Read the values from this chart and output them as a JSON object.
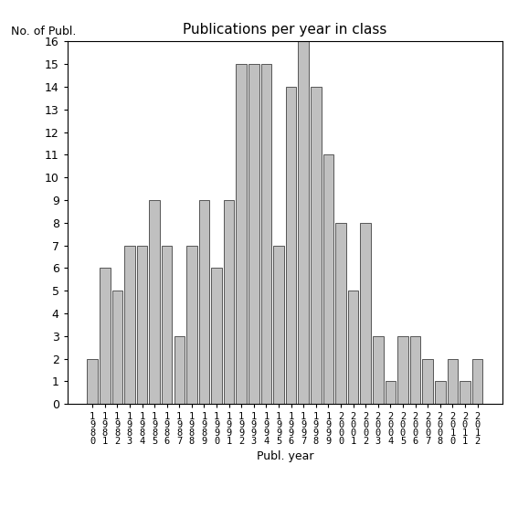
{
  "title": "Publications per year in class",
  "xlabel": "Publ. year",
  "ylabel": "No. of Publ.",
  "bar_color": "#c0c0c0",
  "bar_edgecolor": "#404040",
  "background_color": "#ffffff",
  "ylim": [
    0,
    16
  ],
  "yticks": [
    0,
    1,
    2,
    3,
    4,
    5,
    6,
    7,
    8,
    9,
    10,
    11,
    12,
    13,
    14,
    15,
    16
  ],
  "categories": [
    "1980",
    "1981",
    "1982",
    "1983",
    "1984",
    "1985",
    "1986",
    "1987",
    "1988",
    "1989",
    "1990",
    "1991",
    "1992",
    "1993",
    "1994",
    "1995",
    "1996",
    "1997",
    "1998",
    "1999",
    "2000",
    "2001",
    "2002",
    "2003",
    "2004",
    "2005",
    "2006",
    "2007",
    "2008",
    "2010",
    "2011",
    "2012"
  ],
  "values": [
    2,
    6,
    5,
    7,
    7,
    9,
    7,
    3,
    7,
    9,
    6,
    9,
    15,
    15,
    15,
    7,
    14,
    16,
    14,
    11,
    8,
    5,
    8,
    3,
    1,
    3,
    3,
    2,
    1,
    2,
    1,
    2
  ],
  "figsize": [
    5.67,
    5.67
  ],
  "dpi": 100,
  "title_fontsize": 11,
  "label_fontsize": 9,
  "tick_fontsize": 9,
  "xtick_fontsize": 7.5
}
